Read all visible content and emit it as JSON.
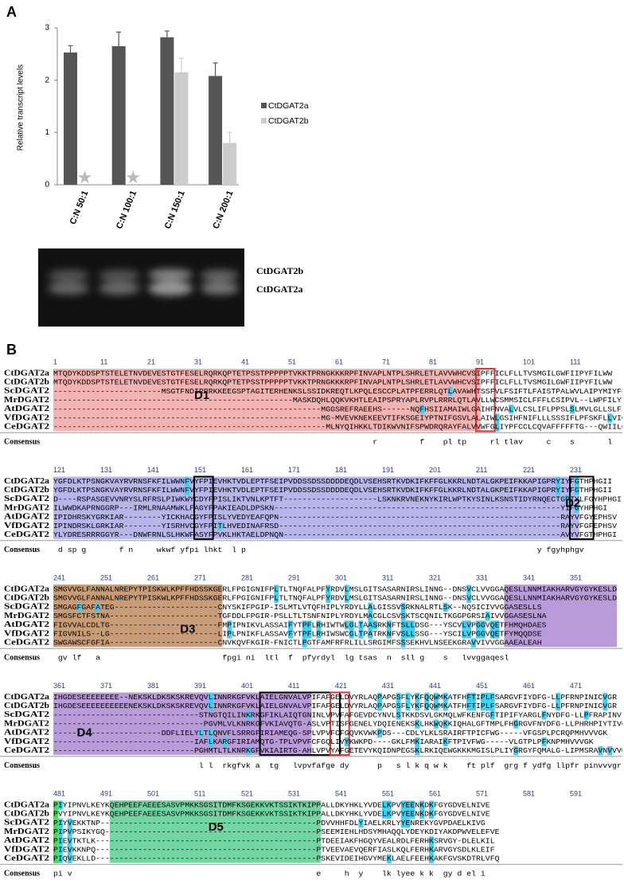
{
  "panel_a": {
    "label": "A"
  },
  "chart_data": {
    "type": "bar",
    "y_label": "Relative transcript levels",
    "categories": [
      "C:N 50:1",
      "C:N 100:1",
      "C:N 150:1",
      "C:N 200:1"
    ],
    "series": [
      {
        "name": "CtDGAT2a",
        "color": "#555555",
        "values": [
          2.53,
          2.65,
          2.82,
          2.08
        ],
        "errors": [
          0.13,
          0.27,
          0.12,
          0.25
        ]
      },
      {
        "name": "CtDGAT2b",
        "color": "#cccccc",
        "values": [
          null,
          null,
          2.15,
          0.8
        ],
        "errors": [
          null,
          null,
          0.27,
          0.2
        ]
      }
    ],
    "ylim": [
      0,
      3
    ],
    "yticks": [
      0,
      1,
      2,
      3
    ],
    "grid": false
  },
  "gel": {
    "bands": [
      "CtDGAT2b",
      "CtDGAT2a"
    ]
  },
  "panel_b": {
    "label": "B"
  },
  "alignment": {
    "names": [
      "CtDGAT2a",
      "CtDGAT2b",
      "ScDGAT2",
      "MrDGAT2",
      "AtDGAT2",
      "VfDGAT2",
      "CeDGAT2"
    ],
    "consensus_label": "Consensus",
    "blocks": [
      {
        "ruler": [
          1,
          11,
          21,
          31,
          41,
          51,
          61,
          71,
          81,
          91,
          101,
          111
        ],
        "domain": "D1",
        "rows": [
          "MTQDYKDDSPTSTELETNVDEVESTGTFESELRQRKQPTETPSSTPPPPPTVKKTPRNGKKKRPFINVAPLNTPLSHRLETLAVVWHCVSIPFFICLFLLTVSMGILGWFIIPYFILWW",
          "MTQDYKDDSPTSTELETNVDEVESTGTFESELRQRKQPTETPSSTPPPPPTVKKTPRNGKKKRPFINVAPLNTPLSHRLETLAVVWHCVSIPFFICLFLLTVSMGILGWFIIPYFILWW",
          "-----------------------MSGTFNDIRRRKKEEGSPTAGITERHENKSLSSIDKREQTLKPQLESCCPLATPFERRLQTLAVAWHTSSFVLFSIFTLFAISTPALWVLAIPYMIYFF",
          "---------------------------------------------------MASKDQHLQQKVKHTLEAIPSPRYAPLRVPLRRRLQTLAVLLWCSMMSICLFFFLCSIPVL--LWPFILYLTW",
          "---------------------------------------------------------MGGSREFRAEEHS------NQFHSIIAMAIWLGAIHFNVALVLCSLIFLPPSLSLMVLGLLSLFIF",
          "---------------------------------------------------------MG-MVEVKNEKEEVTIFKSGEIYPTNIFGSVLALAIWLGSIHFNIFLLLSSSIFLPFSKFLLVIGLLF",
          "----------------------------------------------------------MLNYQIHKKLTDIKWVNIFSPWDRQRAYFALVVWFGLIYPFCCLCQVAFFFFFTG---QWIILGLYAVW"
        ],
        "consensus": "                                                                    r         f    pl tp     rl tlav     c    s       l     i      w"
      },
      {
        "ruler": [
          121,
          131,
          141,
          151,
          161,
          171,
          181,
          191,
          201,
          211,
          221,
          231
        ],
        "domain": "D2",
        "rows": [
          "YGFDLKTPSNGKVAYRVRNSFKFILWWNFVYFPIEVHKTVDLEPTFSEIPVDDSSDSSDDDDEQDLVSEHSRTKVDKIFKFFGLKKRLNDTALGKPEIFKKAPIGPRYIYFGTHPHGII",
          "YGFDLKTPSNGKVAYRVRNSFKFILWWNFVYFPIEVHKTVDLEPTFSEIPVDDSSDSSDDDDEQDLVSEHSRTKVDKIFKFFGLKKRLNDTALGKPEIFKKAPIGPRYIYFGTHPHGII",
          "D----RSPASGEVVNRYSLRFRSLPIWKWYCDYFPISLIKTVNLKPTFT--------------------LSKNKRVNEKNYKIRLWPTKYSINLKSNSTIDYRNQECTGPTYLFGYHPHGI",
          "ILWWDKAPRNGGRP---IRMLRNAAMWKLFAGYFPAKIEADLDPSKN-------------------------------------------------------------YIFGYHPHGI",
          "IPIDHRSKYGRKIAR--------YICKHACGYFPISLYVEDYEAFQPN------------------------------------------------------------RAYVFGYEPHSV",
          "IPINDRSKLGRKIAR--------YISRHVCGYFPITLHVEDINAFRSD------------------------------------------------------------RAYVFGFEPHSV",
          "YLYDRESRRRGGYR---DNWFRNLSLHKWFASYFPVKLHKTAELDPNQN-----------------------------------------------------------AVYVFGTHPHGI"
        ],
        "consensus": " d sp g       f n     wkwf yfpi lhkt  l p                                                              y fgyhphgv"
      },
      {
        "ruler": [
          241,
          251,
          261,
          271,
          281,
          291,
          301,
          311,
          321,
          331,
          341,
          351
        ],
        "domain": "D3",
        "rows": [
          "SMGVVGLFANNALNREPYTPISKWLKPFFHDSSKGERLFPGIGNIFPLTLTNQFALPFYRDVLMSLGITSASARNIRSLINNG--DNSVCLVVGGAQESLLNNMIAKHARVGYGYKESLD",
          "SMGVVGLFANNALNREPYTPISKWLKPFFHDSSKGERLFPGIGNIFPLTLTNQFALPFYRDVLMSLGITSASARNIRSLINNG--DNSVCLVVGGAQESLLNNMIAKHARVGYGYKESLD",
          "SMGAGFGAFATEG----------------------CNYSKIFPGIP-ISLMTLVTQFHIPLYRDYLLALGISSVSRKNALRTLSK--NQSICIVVGGASESLLS",
          "SMGSFCTFSTNA-----------------------TGFDDLFPGIR-PSLLTLTSNFNIPLYRDYLMACGLCSVSKTSCQNILTKGGPGRSIAIVVGGASESLNA",
          "FIGVVALCDLTG-----------------------FMPIPNIKVLASSAIFYTPFLRHIWTWLGLTAASRKNFTSLLDSG---YSCVLVPGGVQETFHMQHDAES",
          "FIGVNILS--LG-----------------------LIPLPNIKFLASSAVFYTPFLRHIWSWCGLTPATRKNFVSLLSSG---YSCILVPGGVQETFYMQQDSE",
          "SWGAWSCFGFIA-----------------------CNVKQVFKGIR-FNICTLPGTFAMFRFRLILLSRGIMFSSSEKHVLNSEEKGRAVVIVVGGAAEALEAH"
        ],
        "consensus": " gv lf   a                          fpgi ni  ltl  f  pfyrdyl  lg tsas  n  sll g    s   lvvggaqesl"
      },
      {
        "ruler": [
          361,
          371,
          381,
          391,
          401,
          411,
          421,
          431,
          441,
          451,
          461,
          471
        ],
        "domain": "D4",
        "rows": [
          "IHGDESEEEEEEEE--NEKSKLDKSKSKREVQVLINNRKGFVKLAIELGNVALVPIFAFGELDVYRLAQPAPGSFLYKFQQWMKATFHFTIPLFSARGVFIYDFG-LLPFRNPINICVGR",
          "IHGDESEEEEEEEEEENEKSKLDKSKSKREVQVLINNRKGFVKLAIELGNVALVPIFAFGELDVYRLAQPAPGSFLYKFQQWMKATFHFTIPLFSARGVFIYDFG-LLPFRNPINICVGR",
          "-------------------------------STNGTQILINKRKGFIKLAIQTGNINLVPVFAFGEVDCYNVLSTKKDSVLGKMQLWFKENFGFTIPIFYARGLFNYDFG-LLPFRAPINV",
          "--------------------------------PGVMLVLKNRKGFVKIAVQTG-ASLVPTISFGENELYDQIENEKSKLHKWQKKIQHALGFTMPLFHGRGVFNYDFG-LLPHRHPIYTIVG",
          "-----------------------DDFLIELYLTLQNVFLSRRGFIRIAMEQG-SPLVPVFCFGQVKVWKPDS---CDLYLKLSRAIRFTPICFWG-----VFGSPLPCRQPMHVVVGK",
          "------------------------------IAFLKARGFIRIAMQTG-TPLVPVFCFGQLIVYKWKPD----GKLFMKIARAIKFTPIVFWG-----VLGTPLPFKNPMHVVVGK",
          "------------------------------PGHMTLTLKNRKGFVKIAIRTG-AHLVPVYAFGETEVYKQIDNPEGSKLRKIQEWGKKKMGISLPLIYGRGYFQMALG-LIPMSRAVNVVVGA"
        ],
        "consensus": "                               l l  rkgfvk a  tg   lvpvfafge dy      p   s l k q w k    ft plf  grg f ydfg llpfr pinvvvgr"
      },
      {
        "ruler": [
          481,
          491,
          501,
          511,
          521,
          531,
          541,
          551,
          561,
          571,
          581,
          591
        ],
        "domain": "D5",
        "rows": [
          "PIYIPNVLKEYKQEHPEEFAEEESASVPMKKSGSITDMFKSGEKKVKTSSIKTKIPPALLDKYHKLYVDELKPVYEENKDKFGYGDVELNIVE",
          "PVYIPNVLKEYKQEHPEEFAEEESASVPMKKSGSITDMFKSGEKKVKTSSIKTKIPPALLDKYHKLYVDELKPVYEENKDKFGYGDVELNIVE",
          "PIYVEKKTNP----------------------------------------------PDVVHHFDLYIAELKRLYYENREKYGVPDAELKIVG",
          "PIPVPSIKYGQ---------------------------------------------PSEEMIEHLHDSYMHAQQLYDEYKDIYAKDPWVELEFVE",
          "PIEVTKTLK-----------------------------------------------PTDEEIAKFHGQYVEALRDLFERHKSRVGY-DLELKIL",
          "PIEVKKNPQ-----------------------------------------------PTVEEVAEVQERFIASLKQLFERHKARVGYSDLKLEIF",
          "PIQVEKLLD-----------------------------------------------PSKEVIDEIHGVYMEKLAELFEEHKAKFGVSKDTRLVFQ"
        ],
        "consensus": "pi v                                                    e     h  y    lk lyee k k  gy d el i"
      }
    ]
  }
}
